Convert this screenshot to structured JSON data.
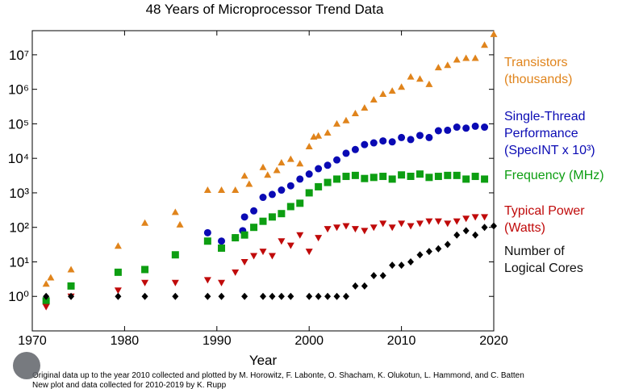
{
  "chart_data": {
    "type": "scatter",
    "title": "48 Years of Microprocessor Trend Data",
    "xlabel": "Year",
    "notes": [
      "Original data up to the year 2010 collected and plotted by M. Horowitz, F. Labonte, O. Shacham, K. Olukotun, L. Hammond, and C. Batten",
      "New plot and data collected for 2010-2019 by K. Rupp"
    ],
    "xlim": [
      1970,
      2020
    ],
    "xticks": [
      1970,
      1980,
      1990,
      2000,
      2010,
      2020
    ],
    "ylim": [
      0.1,
      50000000
    ],
    "yticks": [
      {
        "value": 1,
        "label": "10⁰"
      },
      {
        "value": 10,
        "label": "10¹"
      },
      {
        "value": 100,
        "label": "10²"
      },
      {
        "value": 1000,
        "label": "10³"
      },
      {
        "value": 10000,
        "label": "10⁴"
      },
      {
        "value": 100000,
        "label": "10⁵"
      },
      {
        "value": 1000000,
        "label": "10⁶"
      },
      {
        "value": 10000000,
        "label": "10⁷"
      }
    ],
    "log_y": true,
    "grid": false,
    "legend": "right",
    "series": [
      {
        "name": "Transistors (thousands)",
        "color": "#e0841c",
        "marker": "triangle-up",
        "x": [
          1971.5,
          1972,
          1974.2,
          1979.3,
          1982.2,
          1985.5,
          1986,
          1989,
          1990.5,
          1992,
          1993,
          1993.5,
          1995,
          1995.5,
          1996.5,
          1997,
          1998,
          1999,
          2000,
          2000.5,
          2001,
          2002,
          2003,
          2004,
          2005,
          2006,
          2007,
          2008,
          2009,
          2010,
          2011,
          2012,
          2013,
          2014,
          2015,
          2016,
          2017,
          2018,
          2019,
          2020
        ],
        "values": [
          2.3,
          3.5,
          6,
          29,
          134,
          275,
          120,
          1200,
          1200,
          1200,
          3100,
          1800,
          5500,
          3300,
          4500,
          7500,
          9500,
          7000,
          22000,
          42000,
          45000,
          55000,
          100000,
          125000,
          200000,
          291000,
          500000,
          731000,
          900000,
          1170000,
          2300000,
          2000000,
          1400000,
          4300000,
          5000000,
          7200000,
          8000000,
          8000000,
          19200000,
          39500000
        ]
      },
      {
        "name": "Single-Thread Performance (SpecINT x 10³)",
        "color": "#0a0ab4",
        "marker": "circle",
        "x": [
          1989,
          1990.5,
          1992,
          1992.8,
          1993,
          1994,
          1995,
          1996,
          1997,
          1998,
          1999,
          2000,
          2001,
          2002,
          2003,
          2004,
          2005,
          2006,
          2007,
          2008,
          2009,
          2010,
          2011,
          2012,
          2013,
          2014,
          2015,
          2016,
          2017,
          2018,
          2019
        ],
        "values": [
          70,
          40,
          50,
          80,
          200,
          300,
          740,
          900,
          1200,
          1600,
          2500,
          3500,
          5000,
          6300,
          9000,
          14000,
          18000,
          25000,
          28000,
          32000,
          30000,
          40000,
          35000,
          46000,
          40000,
          63000,
          65000,
          80000,
          75000,
          85000,
          80000
        ]
      },
      {
        "name": "Frequency (MHz)",
        "color": "#0d9e12",
        "marker": "square",
        "x": [
          1971.5,
          1974.2,
          1979.3,
          1982.2,
          1985.5,
          1989,
          1990.5,
          1992,
          1993,
          1994,
          1995,
          1996,
          1997,
          1998,
          1999,
          2000,
          2001,
          2002,
          2003,
          2004,
          2005,
          2006,
          2007,
          2008,
          2009,
          2010,
          2011,
          2012,
          2013,
          2014,
          2015,
          2016,
          2017,
          2018,
          2019
        ],
        "values": [
          0.74,
          2,
          5,
          6,
          16,
          40,
          25,
          50,
          60,
          100,
          150,
          200,
          250,
          400,
          500,
          1000,
          1500,
          2000,
          2500,
          3000,
          3200,
          2600,
          2800,
          3000,
          2500,
          3300,
          3000,
          3500,
          2800,
          3000,
          3200,
          3200,
          2500,
          3000,
          2500
        ]
      },
      {
        "name": "Typical Power (Watts)",
        "color": "#c00a0a",
        "marker": "triangle-down",
        "x": [
          1971.5,
          1974.2,
          1979.3,
          1982.2,
          1985.5,
          1989,
          1990.5,
          1992,
          1993,
          1994,
          1995,
          1996,
          1997,
          1998,
          1999,
          2000,
          2001,
          2002,
          2003,
          2004,
          2005,
          2006,
          2007,
          2008,
          2009,
          2010,
          2011,
          2012,
          2013,
          2014,
          2015,
          2016,
          2017,
          2018,
          2019
        ],
        "values": [
          0.5,
          1,
          1.5,
          2.5,
          2.5,
          3,
          2.5,
          5,
          10,
          15,
          20,
          15,
          40,
          30,
          60,
          20,
          50,
          90,
          100,
          110,
          90,
          80,
          100,
          130,
          100,
          130,
          110,
          130,
          150,
          150,
          130,
          150,
          180,
          200,
          200
        ]
      },
      {
        "name": "Number of Logical Cores",
        "color": "#000000",
        "marker": "diamond",
        "x": [
          1971.5,
          1974.2,
          1979.3,
          1982.2,
          1985.5,
          1989,
          1990.5,
          1993,
          1995,
          1996,
          1997,
          1998,
          2000,
          2001,
          2002,
          2003,
          2004,
          2005,
          2006,
          2007,
          2008,
          2009,
          2010,
          2011,
          2012,
          2013,
          2014,
          2015,
          2016,
          2017,
          2018,
          2019,
          2020
        ],
        "values": [
          1,
          1,
          1,
          1,
          1,
          1,
          1,
          1,
          1,
          1,
          1,
          1,
          1,
          1,
          1,
          1,
          1,
          2,
          2,
          4,
          4,
          8,
          8,
          10,
          16,
          20,
          24,
          32,
          60,
          80,
          60,
          100,
          110
        ]
      }
    ]
  }
}
